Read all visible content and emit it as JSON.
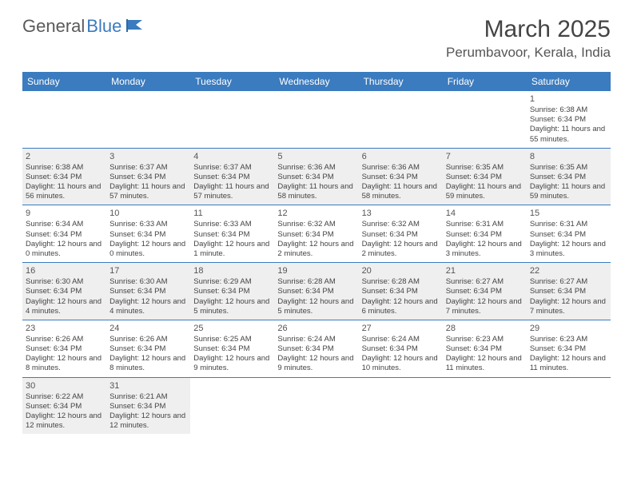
{
  "brand": {
    "part1": "General",
    "part2": "Blue"
  },
  "title": "March 2025",
  "location": "Perumbavoor, Kerala, India",
  "colors": {
    "header_bg": "#3b7bbf",
    "header_text": "#ffffff",
    "shade_bg": "#efefef",
    "text": "#444444",
    "border": "#3b7bbf"
  },
  "daynames": [
    "Sunday",
    "Monday",
    "Tuesday",
    "Wednesday",
    "Thursday",
    "Friday",
    "Saturday"
  ],
  "weeks": [
    {
      "shade": false,
      "days": [
        null,
        null,
        null,
        null,
        null,
        null,
        {
          "n": "1",
          "sunrise": "Sunrise: 6:38 AM",
          "sunset": "Sunset: 6:34 PM",
          "daylight": "Daylight: 11 hours and 55 minutes."
        }
      ]
    },
    {
      "shade": true,
      "days": [
        {
          "n": "2",
          "sunrise": "Sunrise: 6:38 AM",
          "sunset": "Sunset: 6:34 PM",
          "daylight": "Daylight: 11 hours and 56 minutes."
        },
        {
          "n": "3",
          "sunrise": "Sunrise: 6:37 AM",
          "sunset": "Sunset: 6:34 PM",
          "daylight": "Daylight: 11 hours and 57 minutes."
        },
        {
          "n": "4",
          "sunrise": "Sunrise: 6:37 AM",
          "sunset": "Sunset: 6:34 PM",
          "daylight": "Daylight: 11 hours and 57 minutes."
        },
        {
          "n": "5",
          "sunrise": "Sunrise: 6:36 AM",
          "sunset": "Sunset: 6:34 PM",
          "daylight": "Daylight: 11 hours and 58 minutes."
        },
        {
          "n": "6",
          "sunrise": "Sunrise: 6:36 AM",
          "sunset": "Sunset: 6:34 PM",
          "daylight": "Daylight: 11 hours and 58 minutes."
        },
        {
          "n": "7",
          "sunrise": "Sunrise: 6:35 AM",
          "sunset": "Sunset: 6:34 PM",
          "daylight": "Daylight: 11 hours and 59 minutes."
        },
        {
          "n": "8",
          "sunrise": "Sunrise: 6:35 AM",
          "sunset": "Sunset: 6:34 PM",
          "daylight": "Daylight: 11 hours and 59 minutes."
        }
      ]
    },
    {
      "shade": false,
      "days": [
        {
          "n": "9",
          "sunrise": "Sunrise: 6:34 AM",
          "sunset": "Sunset: 6:34 PM",
          "daylight": "Daylight: 12 hours and 0 minutes."
        },
        {
          "n": "10",
          "sunrise": "Sunrise: 6:33 AM",
          "sunset": "Sunset: 6:34 PM",
          "daylight": "Daylight: 12 hours and 0 minutes."
        },
        {
          "n": "11",
          "sunrise": "Sunrise: 6:33 AM",
          "sunset": "Sunset: 6:34 PM",
          "daylight": "Daylight: 12 hours and 1 minute."
        },
        {
          "n": "12",
          "sunrise": "Sunrise: 6:32 AM",
          "sunset": "Sunset: 6:34 PM",
          "daylight": "Daylight: 12 hours and 2 minutes."
        },
        {
          "n": "13",
          "sunrise": "Sunrise: 6:32 AM",
          "sunset": "Sunset: 6:34 PM",
          "daylight": "Daylight: 12 hours and 2 minutes."
        },
        {
          "n": "14",
          "sunrise": "Sunrise: 6:31 AM",
          "sunset": "Sunset: 6:34 PM",
          "daylight": "Daylight: 12 hours and 3 minutes."
        },
        {
          "n": "15",
          "sunrise": "Sunrise: 6:31 AM",
          "sunset": "Sunset: 6:34 PM",
          "daylight": "Daylight: 12 hours and 3 minutes."
        }
      ]
    },
    {
      "shade": true,
      "days": [
        {
          "n": "16",
          "sunrise": "Sunrise: 6:30 AM",
          "sunset": "Sunset: 6:34 PM",
          "daylight": "Daylight: 12 hours and 4 minutes."
        },
        {
          "n": "17",
          "sunrise": "Sunrise: 6:30 AM",
          "sunset": "Sunset: 6:34 PM",
          "daylight": "Daylight: 12 hours and 4 minutes."
        },
        {
          "n": "18",
          "sunrise": "Sunrise: 6:29 AM",
          "sunset": "Sunset: 6:34 PM",
          "daylight": "Daylight: 12 hours and 5 minutes."
        },
        {
          "n": "19",
          "sunrise": "Sunrise: 6:28 AM",
          "sunset": "Sunset: 6:34 PM",
          "daylight": "Daylight: 12 hours and 5 minutes."
        },
        {
          "n": "20",
          "sunrise": "Sunrise: 6:28 AM",
          "sunset": "Sunset: 6:34 PM",
          "daylight": "Daylight: 12 hours and 6 minutes."
        },
        {
          "n": "21",
          "sunrise": "Sunrise: 6:27 AM",
          "sunset": "Sunset: 6:34 PM",
          "daylight": "Daylight: 12 hours and 7 minutes."
        },
        {
          "n": "22",
          "sunrise": "Sunrise: 6:27 AM",
          "sunset": "Sunset: 6:34 PM",
          "daylight": "Daylight: 12 hours and 7 minutes."
        }
      ]
    },
    {
      "shade": false,
      "days": [
        {
          "n": "23",
          "sunrise": "Sunrise: 6:26 AM",
          "sunset": "Sunset: 6:34 PM",
          "daylight": "Daylight: 12 hours and 8 minutes."
        },
        {
          "n": "24",
          "sunrise": "Sunrise: 6:26 AM",
          "sunset": "Sunset: 6:34 PM",
          "daylight": "Daylight: 12 hours and 8 minutes."
        },
        {
          "n": "25",
          "sunrise": "Sunrise: 6:25 AM",
          "sunset": "Sunset: 6:34 PM",
          "daylight": "Daylight: 12 hours and 9 minutes."
        },
        {
          "n": "26",
          "sunrise": "Sunrise: 6:24 AM",
          "sunset": "Sunset: 6:34 PM",
          "daylight": "Daylight: 12 hours and 9 minutes."
        },
        {
          "n": "27",
          "sunrise": "Sunrise: 6:24 AM",
          "sunset": "Sunset: 6:34 PM",
          "daylight": "Daylight: 12 hours and 10 minutes."
        },
        {
          "n": "28",
          "sunrise": "Sunrise: 6:23 AM",
          "sunset": "Sunset: 6:34 PM",
          "daylight": "Daylight: 12 hours and 11 minutes."
        },
        {
          "n": "29",
          "sunrise": "Sunrise: 6:23 AM",
          "sunset": "Sunset: 6:34 PM",
          "daylight": "Daylight: 12 hours and 11 minutes."
        }
      ]
    },
    {
      "shade": true,
      "last": true,
      "days": [
        {
          "n": "30",
          "sunrise": "Sunrise: 6:22 AM",
          "sunset": "Sunset: 6:34 PM",
          "daylight": "Daylight: 12 hours and 12 minutes."
        },
        {
          "n": "31",
          "sunrise": "Sunrise: 6:21 AM",
          "sunset": "Sunset: 6:34 PM",
          "daylight": "Daylight: 12 hours and 12 minutes."
        },
        null,
        null,
        null,
        null,
        null
      ]
    }
  ]
}
